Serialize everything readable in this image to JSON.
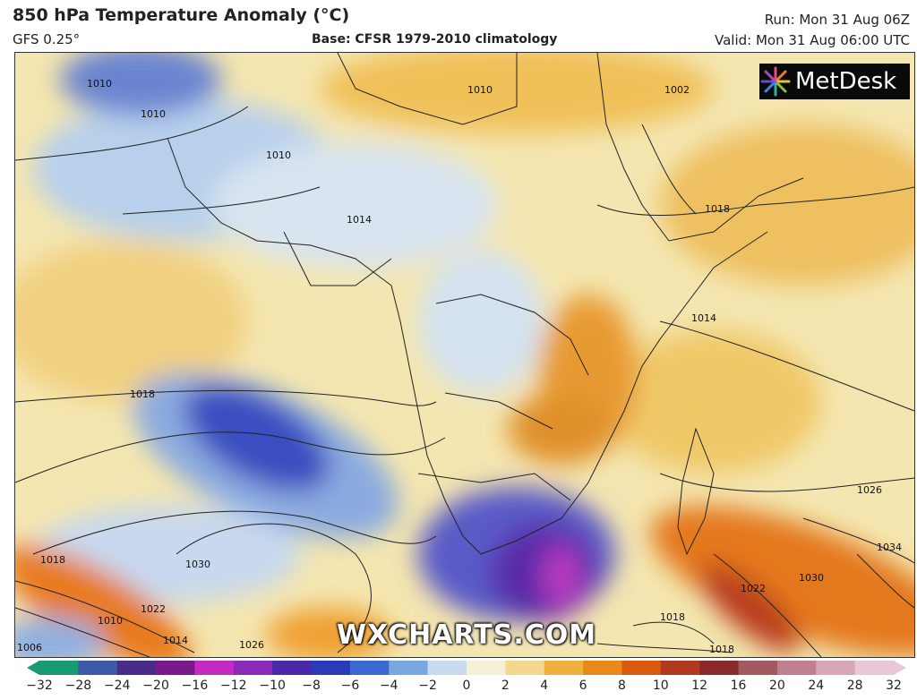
{
  "header": {
    "title": "850 hPa Temperature Anomaly (°C)",
    "model": "GFS 0.25°",
    "base": "Base: CFSR 1979-2010 climatology",
    "run": "Run: Mon 31 Aug 06Z",
    "valid": "Valid: Mon 31 Aug 06:00 UTC"
  },
  "logo": {
    "text": "MetDesk",
    "icon": "metdesk-burst-icon"
  },
  "watermark": "WXCHARTS.COM",
  "isobar_labels": [
    "1010",
    "1010",
    "1010",
    "1002",
    "1010",
    "1014",
    "1014",
    "1018",
    "1018",
    "1026",
    "1034",
    "1030",
    "1030",
    "1022",
    "1022",
    "1018",
    "1018",
    "1010",
    "1006",
    "1014",
    "1026",
    "1018"
  ],
  "colorbar": {
    "ticks": [
      "−32",
      "−28",
      "−24",
      "−20",
      "−16",
      "−12",
      "−10",
      "−8",
      "−6",
      "−4",
      "−2",
      "0",
      "2",
      "4",
      "6",
      "8",
      "10",
      "12",
      "16",
      "20",
      "24",
      "28",
      "32"
    ],
    "colors": [
      "#1a9a70",
      "#3c5aa8",
      "#4a2a8a",
      "#7a1a8a",
      "#c22ac2",
      "#8a2ab8",
      "#4a28a8",
      "#2a3ab8",
      "#3a6ad0",
      "#78a8e0",
      "#c8dcf0",
      "#f5f0d8",
      "#f5d890",
      "#f0b040",
      "#e88a1a",
      "#d85a10",
      "#b03a20",
      "#8a2a2a",
      "#a05a60",
      "#c08090",
      "#d8a8b8",
      "#e8c8d8"
    ]
  }
}
